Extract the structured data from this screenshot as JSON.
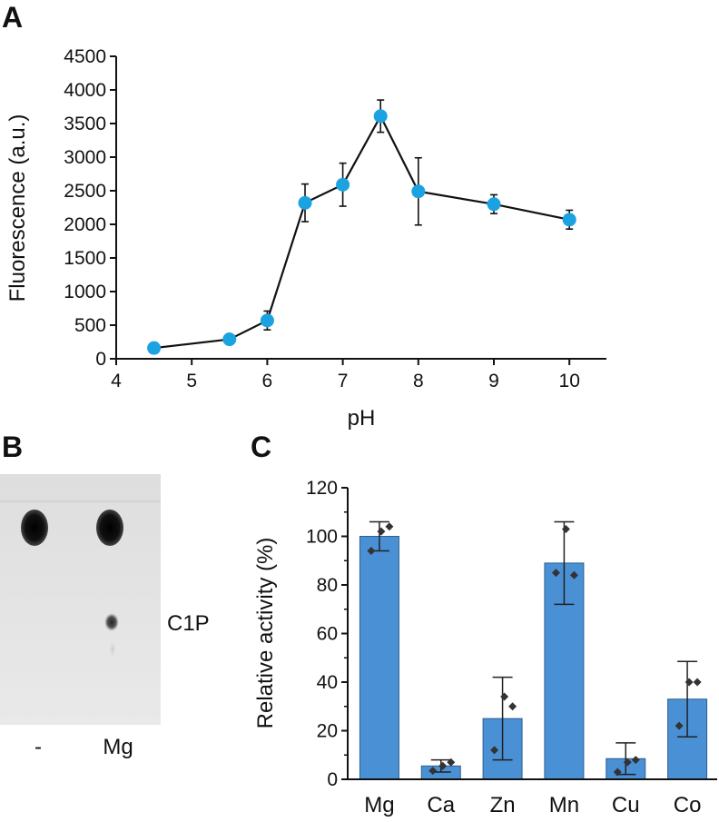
{
  "panels": {
    "a": "A",
    "b": "B",
    "c": "C"
  },
  "chart_data": [
    {
      "type": "line",
      "panel": "A",
      "xlabel": "pH",
      "ylabel": "Fluorescence (a.u.)",
      "xlim": [
        4,
        10.5
      ],
      "ylim": [
        0,
        4500
      ],
      "xticks": [
        4,
        5,
        6,
        7,
        8,
        9,
        10
      ],
      "yticks": [
        0,
        500,
        1000,
        1500,
        2000,
        2500,
        3000,
        3500,
        4000,
        4500
      ],
      "x": [
        4.5,
        5.5,
        6,
        6.5,
        7,
        7.5,
        8,
        9,
        10
      ],
      "y": [
        160,
        290,
        570,
        2320,
        2590,
        3610,
        2490,
        2300,
        2070
      ],
      "error": [
        0,
        0,
        140,
        280,
        320,
        240,
        500,
        140,
        140
      ],
      "marker_color": "#1aa3e0",
      "line_color": "#111111"
    },
    {
      "type": "bar",
      "panel": "C",
      "ylabel": "Relative activity (%)",
      "ylim": [
        0,
        120
      ],
      "yticks": [
        0,
        20,
        40,
        60,
        80,
        100,
        120
      ],
      "categories": [
        "Mg",
        "Ca",
        "Zn",
        "Mn",
        "Cu",
        "Co"
      ],
      "values": [
        100,
        5.5,
        25,
        89,
        8.5,
        33
      ],
      "error": [
        6,
        2.5,
        17,
        17,
        6.5,
        15.5
      ],
      "points": [
        [
          94,
          102,
          104
        ],
        [
          3.5,
          5.5,
          7
        ],
        [
          12,
          34,
          30
        ],
        [
          85,
          103,
          84
        ],
        [
          3,
          7,
          8
        ],
        [
          22,
          40,
          40
        ]
      ],
      "bar_color": "#4a90d4",
      "point_color": "#333333"
    }
  ],
  "gel": {
    "lanes": [
      "-",
      "Mg"
    ],
    "band_label": "C1P"
  }
}
